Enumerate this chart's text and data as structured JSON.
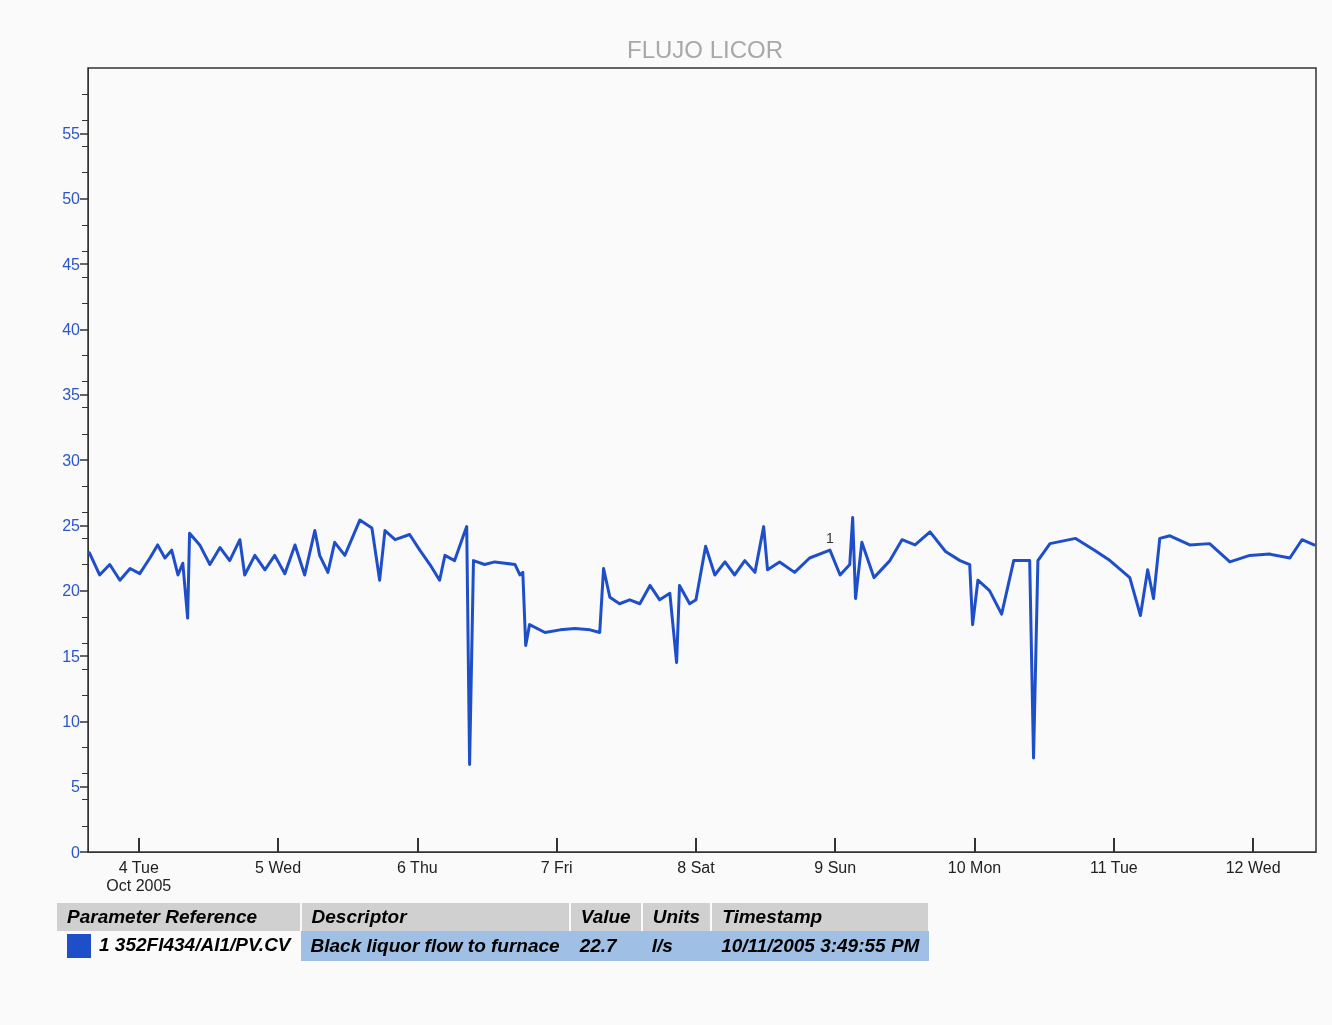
{
  "chart_data": {
    "type": "line",
    "title": "FLUJO LICOR",
    "x": [
      "2005-10-03T15:30",
      "2005-10-03T17:15",
      "2005-10-03T19:00",
      "2005-10-03T20:45",
      "2005-10-03T22:30",
      "2005-10-04T00:10",
      "2005-10-04T01:55",
      "2005-10-04T03:15",
      "2005-10-04T04:30",
      "2005-10-04T05:40",
      "2005-10-04T06:45",
      "2005-10-04T07:35",
      "2005-10-04T08:25",
      "2005-10-04T08:45",
      "2005-10-04T10:30",
      "2005-10-04T12:15",
      "2005-10-04T14:00",
      "2005-10-04T15:40",
      "2005-10-04T17:25",
      "2005-10-04T18:15",
      "2005-10-04T20:00",
      "2005-10-04T21:45",
      "2005-10-04T23:25",
      "2005-10-05T01:10",
      "2005-10-05T02:55",
      "2005-10-05T04:35",
      "2005-10-05T06:20",
      "2005-10-05T07:10",
      "2005-10-05T08:35",
      "2005-10-05T09:45",
      "2005-10-05T11:30",
      "2005-10-05T14:05",
      "2005-10-05T16:10",
      "2005-10-05T17:30",
      "2005-10-05T18:25",
      "2005-10-05T20:10",
      "2005-10-05T22:40",
      "2005-10-06T00:25",
      "2005-10-06T02:10",
      "2005-10-06T03:50",
      "2005-10-06T04:45",
      "2005-10-06T06:25",
      "2005-10-06T08:00",
      "2005-10-06T08:30",
      "2005-10-06T09:00",
      "2005-10-06T09:40",
      "2005-10-06T11:35",
      "2005-10-06T13:20",
      "2005-10-06T15:05",
      "2005-10-06T16:50",
      "2005-10-06T17:40",
      "2005-10-06T18:10",
      "2005-10-06T18:40",
      "2005-10-06T19:20",
      "2005-10-06T22:00",
      "2005-10-07T00:35",
      "2005-10-07T03:10",
      "2005-10-07T05:45",
      "2005-10-07T07:25",
      "2005-10-07T08:05",
      "2005-10-07T09:10",
      "2005-10-07T10:50",
      "2005-10-07T12:35",
      "2005-10-07T14:20",
      "2005-10-07T16:05",
      "2005-10-07T17:45",
      "2005-10-07T19:30",
      "2005-10-07T20:40",
      "2005-10-07T21:10",
      "2005-10-07T22:55",
      "2005-10-08T00:00",
      "2005-10-08T01:40",
      "2005-10-08T03:15",
      "2005-10-08T05:00",
      "2005-10-08T06:40",
      "2005-10-08T08:25",
      "2005-10-08T10:10",
      "2005-10-08T11:40",
      "2005-10-08T12:20",
      "2005-10-08T14:25",
      "2005-10-08T17:00",
      "2005-10-08T19:35",
      "2005-10-08T23:05",
      "2005-10-09T00:50",
      "2005-10-09T02:30",
      "2005-10-09T03:00",
      "2005-10-09T03:30",
      "2005-10-09T04:35",
      "2005-10-09T06:40",
      "2005-10-09T09:25",
      "2005-10-09T11:30",
      "2005-10-09T13:45",
      "2005-10-09T16:20",
      "2005-10-09T19:00",
      "2005-10-09T21:30",
      "2005-10-09T23:10",
      "2005-10-09T23:40",
      "2005-10-10T00:35",
      "2005-10-10T02:35",
      "2005-10-10T04:40",
      "2005-10-10T06:45",
      "2005-10-10T09:30",
      "2005-10-10T10:10",
      "2005-10-10T10:55",
      "2005-10-10T13:00",
      "2005-10-10T17:25",
      "2005-10-10T20:40",
      "2005-10-10T23:20",
      "2005-10-11T02:45",
      "2005-10-11T04:35",
      "2005-10-11T05:50",
      "2005-10-11T06:50",
      "2005-10-11T07:55",
      "2005-10-11T09:40",
      "2005-10-11T13:05",
      "2005-10-11T16:30",
      "2005-10-11T20:00",
      "2005-10-11T23:25",
      "2005-10-12T02:50",
      "2005-10-12T06:20",
      "2005-10-12T08:25",
      "2005-10-12T10:30"
    ],
    "series": [
      {
        "color": "#1f4fc8",
        "values": [
          22.9,
          21.2,
          22.0,
          20.8,
          21.7,
          21.3,
          22.5,
          23.5,
          22.5,
          23.1,
          21.2,
          22.1,
          17.9,
          24.4,
          23.5,
          22.0,
          23.3,
          22.3,
          23.9,
          21.2,
          22.7,
          21.6,
          22.7,
          21.3,
          23.5,
          21.2,
          24.6,
          22.7,
          21.4,
          23.7,
          22.7,
          25.4,
          24.8,
          20.8,
          24.6,
          23.9,
          24.3,
          23.1,
          22.0,
          20.8,
          22.7,
          22.3,
          24.3,
          24.9,
          6.7,
          22.3,
          22.0,
          22.2,
          22.1,
          22.0,
          21.2,
          21.4,
          15.8,
          17.4,
          16.8,
          17.0,
          17.1,
          17.0,
          16.8,
          21.7,
          19.5,
          19.0,
          19.3,
          19.0,
          20.4,
          19.3,
          19.8,
          14.5,
          20.4,
          19.0,
          19.3,
          23.4,
          21.2,
          22.2,
          21.2,
          22.3,
          21.4,
          24.9,
          21.6,
          22.2,
          21.4,
          22.5,
          23.1,
          21.2,
          22.0,
          25.6,
          19.4,
          23.7,
          21.0,
          22.3,
          23.9,
          23.5,
          24.5,
          23.0,
          22.3,
          22.0,
          17.4,
          20.8,
          20.0,
          18.2,
          22.3,
          22.3,
          7.2,
          22.3,
          23.6,
          24.0,
          23.1,
          22.3,
          21.0,
          18.1,
          21.6,
          19.4,
          24.0,
          24.2,
          23.5,
          23.6,
          22.2,
          22.7,
          22.8,
          22.5,
          23.9,
          23.5
        ]
      }
    ],
    "xlim": [
      "2005-10-03T15:15",
      "2005-10-12T10:50"
    ],
    "xticks": [
      {
        "value": "2005-10-04",
        "label": "4 Tue\nOct 2005"
      },
      {
        "value": "2005-10-05",
        "label": "5 Wed"
      },
      {
        "value": "2005-10-06",
        "label": "6 Thu"
      },
      {
        "value": "2005-10-07",
        "label": "7 Fri"
      },
      {
        "value": "2005-10-08",
        "label": "8 Sat"
      },
      {
        "value": "2005-10-09",
        "label": "9 Sun"
      },
      {
        "value": "2005-10-10",
        "label": "10 Mon"
      },
      {
        "value": "2005-10-11",
        "label": "11 Tue"
      },
      {
        "value": "2005-10-12",
        "label": "12 Wed"
      }
    ],
    "ylim": [
      0,
      60
    ],
    "yticks": [
      0,
      5,
      10,
      15,
      20,
      25,
      30,
      35,
      40,
      45,
      50,
      55
    ],
    "marker": "none",
    "line_style": "solid",
    "grid": false,
    "annotations": [
      {
        "text": "1",
        "x": "2005-10-08T23:05",
        "y": 23.1
      },
      "Parameter Reference",
      "Descriptor",
      "Value",
      "Units",
      "Timestamp",
      "1 352FI434/AI1/PV.CV",
      "Black liquor flow to furnace",
      "22.7",
      "l/s",
      "10/11/2005 3:49:55 PM"
    ]
  }
}
